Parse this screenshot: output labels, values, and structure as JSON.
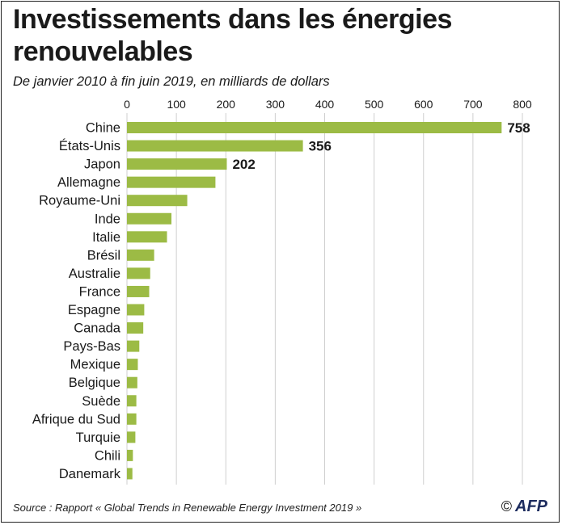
{
  "title": "Investissements dans les énergies renouvelables",
  "subtitle": "De janvier 2010 à fin juin 2019, en milliards de dollars",
  "source": "Source : Rapport « Global Trends in Renewable Energy Investment 2019 »",
  "credit": {
    "copyright_symbol": "©",
    "logo_text": "AFP"
  },
  "colors": {
    "bar": "#9cbb45",
    "grid": "#cfcfcf",
    "text": "#1a1a1a"
  },
  "chart_data": {
    "type": "bar",
    "orientation": "horizontal",
    "title": "Investissements dans les énergies renouvelables",
    "subtitle": "De janvier 2010 à fin juin 2019, en milliards de dollars",
    "categories": [
      "Chine",
      "États-Unis",
      "Japon",
      "Allemagne",
      "Royaume-Uni",
      "Inde",
      "Italie",
      "Brésil",
      "Australie",
      "France",
      "Espagne",
      "Canada",
      "Pays-Bas",
      "Mexique",
      "Belgique",
      "Suède",
      "Afrique du Sud",
      "Turquie",
      "Chili",
      "Danemark"
    ],
    "values": [
      758,
      356,
      202,
      179,
      122,
      90,
      81,
      55,
      47,
      45,
      35,
      33,
      25,
      22,
      21,
      19,
      19,
      17,
      12,
      11
    ],
    "data_labels": [
      "758",
      "356",
      "202",
      "",
      "",
      "",
      "",
      "",
      "",
      "",
      "",
      "",
      "",
      "",
      "",
      "",
      "",
      "",
      "",
      ""
    ],
    "xlim": [
      0,
      800
    ],
    "xticks": [
      "0",
      "100",
      "200",
      "300",
      "400",
      "500",
      "600",
      "700",
      "800"
    ],
    "x_axis_position": "top",
    "grid": true
  }
}
